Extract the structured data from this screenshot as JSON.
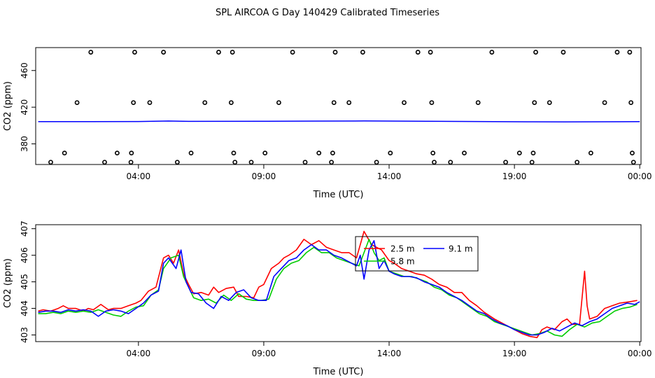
{
  "title": "SPL AIRCOA G  Day 140429  Calibrated Timeseries",
  "chart_data": [
    {
      "type": "scatter",
      "xlabel": "Time (UTC)",
      "ylabel": "CO2 (ppm)",
      "xlim": [
        -0.1,
        24.05
      ],
      "ylim": [
        357.5,
        485
      ],
      "xticks": [
        {
          "value": 4,
          "label": "04:00"
        },
        {
          "value": 9,
          "label": "09:00"
        },
        {
          "value": 14,
          "label": "14:00"
        },
        {
          "value": 19,
          "label": "19:00"
        },
        {
          "value": 24,
          "label": "00:00"
        }
      ],
      "yticks": [
        {
          "value": 380,
          "label": "380"
        },
        {
          "value": 420,
          "label": "420"
        },
        {
          "value": 460,
          "label": "460"
        }
      ],
      "points": [
        [
          0.5,
          360
        ],
        [
          1.05,
          370
        ],
        [
          1.55,
          425
        ],
        [
          2.1,
          480
        ],
        [
          2.65,
          360
        ],
        [
          3.15,
          370
        ],
        [
          3.7,
          360
        ],
        [
          3.72,
          370
        ],
        [
          3.8,
          425
        ],
        [
          3.85,
          480
        ],
        [
          4.45,
          425
        ],
        [
          5.0,
          480
        ],
        [
          5.55,
          360
        ],
        [
          6.1,
          370
        ],
        [
          6.65,
          425
        ],
        [
          7.2,
          480
        ],
        [
          7.7,
          425
        ],
        [
          7.75,
          480
        ],
        [
          7.8,
          370
        ],
        [
          7.85,
          360
        ],
        [
          8.5,
          360
        ],
        [
          9.05,
          370
        ],
        [
          9.6,
          425
        ],
        [
          10.15,
          480
        ],
        [
          10.65,
          360
        ],
        [
          11.2,
          370
        ],
        [
          11.7,
          360
        ],
        [
          11.75,
          370
        ],
        [
          11.8,
          425
        ],
        [
          11.85,
          480
        ],
        [
          12.4,
          425
        ],
        [
          12.95,
          480
        ],
        [
          13.5,
          360
        ],
        [
          14.05,
          370
        ],
        [
          14.6,
          425
        ],
        [
          15.15,
          480
        ],
        [
          15.65,
          480
        ],
        [
          15.7,
          425
        ],
        [
          15.75,
          370
        ],
        [
          15.8,
          360
        ],
        [
          16.45,
          360
        ],
        [
          17.0,
          370
        ],
        [
          17.55,
          425
        ],
        [
          18.1,
          480
        ],
        [
          18.65,
          360
        ],
        [
          19.2,
          370
        ],
        [
          19.7,
          360
        ],
        [
          19.75,
          370
        ],
        [
          19.8,
          425
        ],
        [
          19.85,
          480
        ],
        [
          20.4,
          425
        ],
        [
          20.95,
          480
        ],
        [
          21.5,
          360
        ],
        [
          22.05,
          370
        ],
        [
          22.6,
          425
        ],
        [
          23.1,
          480
        ],
        [
          23.6,
          480
        ],
        [
          23.65,
          425
        ],
        [
          23.7,
          370
        ],
        [
          23.75,
          360
        ]
      ],
      "line": {
        "x": [
          0,
          4,
          5.2,
          6,
          9,
          11,
          13,
          15.5,
          19.5,
          21,
          24
        ],
        "y": [
          404.2,
          404.4,
          404.9,
          404.5,
          404.6,
          404.8,
          405.0,
          404.7,
          404.1,
          404.0,
          404.2
        ]
      }
    },
    {
      "type": "line",
      "xlabel": "Time (UTC)",
      "ylabel": "CO2 (ppm)",
      "xlim": [
        -0.1,
        24.05
      ],
      "ylim": [
        402.75,
        407.15
      ],
      "xticks": [
        {
          "value": 4,
          "label": "04:00"
        },
        {
          "value": 9,
          "label": "09:00"
        },
        {
          "value": 14,
          "label": "14:00"
        },
        {
          "value": 19,
          "label": "19:00"
        },
        {
          "value": 24,
          "label": "00:00"
        }
      ],
      "yticks": [
        {
          "value": 403,
          "label": "403"
        },
        {
          "value": 404,
          "label": "404"
        },
        {
          "value": 405,
          "label": "405"
        },
        {
          "value": 406,
          "label": "406"
        },
        {
          "value": 407,
          "label": "407"
        }
      ],
      "legend": [
        {
          "name": "2.5 m",
          "color": "#ff0000"
        },
        {
          "name": "9.1 m",
          "color": "#0000ff"
        },
        {
          "name": "5.8 m",
          "color": "#00cd00"
        }
      ],
      "series": [
        {
          "name": "2.5 m",
          "color": "#ff0000",
          "x": [
            0,
            0.2,
            0.5,
            0.8,
            1.0,
            1.2,
            1.5,
            1.8,
            2.0,
            2.2,
            2.5,
            2.8,
            3.0,
            3.3,
            3.6,
            3.9,
            4.1,
            4.4,
            4.7,
            5.0,
            5.2,
            5.4,
            5.6,
            5.8,
            6.0,
            6.2,
            6.5,
            6.8,
            7.0,
            7.2,
            7.5,
            7.8,
            8.0,
            8.3,
            8.6,
            8.8,
            9.0,
            9.3,
            9.6,
            9.8,
            10.0,
            10.3,
            10.6,
            10.9,
            11.2,
            11.5,
            11.8,
            12.1,
            12.4,
            12.7,
            13.0,
            13.3,
            13.5,
            13.7,
            14.0,
            14.2,
            14.5,
            14.8,
            15.1,
            15.4,
            15.7,
            16.0,
            16.3,
            16.6,
            16.9,
            17.2,
            17.5,
            17.8,
            18.2,
            18.6,
            19.0,
            19.3,
            19.6,
            19.9,
            20.1,
            20.3,
            20.6,
            20.9,
            21.1,
            21.3,
            21.6,
            21.8,
            21.9,
            22.0,
            22.3,
            22.6,
            22.9,
            23.2,
            23.6,
            23.9
          ],
          "y": [
            403.9,
            403.95,
            403.9,
            404.0,
            404.1,
            404.0,
            404.0,
            403.9,
            404.0,
            403.95,
            404.15,
            403.95,
            404.0,
            404.0,
            404.1,
            404.2,
            404.3,
            404.65,
            404.8,
            405.9,
            406.0,
            405.7,
            406.2,
            405.3,
            404.9,
            404.55,
            404.6,
            404.5,
            404.8,
            404.6,
            404.75,
            404.8,
            404.45,
            404.45,
            404.4,
            404.8,
            404.9,
            405.5,
            405.7,
            405.9,
            406.0,
            406.2,
            406.6,
            406.4,
            406.55,
            406.3,
            406.2,
            406.1,
            406.1,
            405.9,
            406.9,
            406.4,
            406.3,
            406.2,
            405.8,
            405.7,
            405.5,
            405.4,
            405.3,
            405.25,
            405.1,
            404.9,
            404.8,
            404.6,
            404.6,
            404.3,
            404.1,
            403.85,
            403.6,
            403.4,
            403.2,
            403.05,
            402.95,
            402.9,
            403.2,
            403.3,
            403.2,
            403.5,
            403.6,
            403.4,
            403.4,
            405.4,
            404.1,
            403.6,
            403.7,
            404.0,
            404.1,
            404.2,
            404.25,
            404.3
          ]
        },
        {
          "name": "5.8 m",
          "color": "#00cd00",
          "x": [
            0,
            0.3,
            0.6,
            0.9,
            1.2,
            1.5,
            1.8,
            2.1,
            2.4,
            2.7,
            3.0,
            3.3,
            3.6,
            3.9,
            4.2,
            4.5,
            4.8,
            5.0,
            5.3,
            5.6,
            5.8,
            6.0,
            6.2,
            6.5,
            6.8,
            7.1,
            7.4,
            7.7,
            8.0,
            8.3,
            8.6,
            8.9,
            9.2,
            9.5,
            9.8,
            10.1,
            10.4,
            10.7,
            11.0,
            11.3,
            11.6,
            11.9,
            12.2,
            12.5,
            12.8,
            13.0,
            13.2,
            13.4,
            13.6,
            13.8,
            14.0,
            14.3,
            14.6,
            14.9,
            15.2,
            15.5,
            15.8,
            16.1,
            16.4,
            16.7,
            17.0,
            17.3,
            17.6,
            17.9,
            18.2,
            18.5,
            18.8,
            19.1,
            19.4,
            19.7,
            20.0,
            20.3,
            20.6,
            20.9,
            21.2,
            21.5,
            21.8,
            22.1,
            22.4,
            22.7,
            23.0,
            23.3,
            23.6,
            23.9
          ],
          "y": [
            403.8,
            403.8,
            403.85,
            403.8,
            403.9,
            403.85,
            403.9,
            403.85,
            403.95,
            403.85,
            403.75,
            403.7,
            403.9,
            404.05,
            404.1,
            404.5,
            404.7,
            405.5,
            405.9,
            406.0,
            405.2,
            404.8,
            404.4,
            404.3,
            404.35,
            404.2,
            404.5,
            404.3,
            404.55,
            404.35,
            404.3,
            404.3,
            404.35,
            405.1,
            405.5,
            405.7,
            405.8,
            406.1,
            406.3,
            406.1,
            406.1,
            405.9,
            405.8,
            405.7,
            405.6,
            406.1,
            406.6,
            406.1,
            405.8,
            405.9,
            405.4,
            405.3,
            405.2,
            405.2,
            405.1,
            405.0,
            404.8,
            404.7,
            404.5,
            404.4,
            404.2,
            404.0,
            403.8,
            403.7,
            403.5,
            403.4,
            403.3,
            403.2,
            403.1,
            403.0,
            403.05,
            403.15,
            403.0,
            402.95,
            403.2,
            403.4,
            403.3,
            403.45,
            403.5,
            403.7,
            403.9,
            404.0,
            404.05,
            404.15
          ]
        },
        {
          "name": "9.1 m",
          "color": "#0000ff",
          "x": [
            0,
            0.3,
            0.6,
            0.9,
            1.2,
            1.5,
            1.8,
            2.1,
            2.4,
            2.7,
            3.0,
            3.3,
            3.6,
            3.9,
            4.2,
            4.5,
            4.8,
            5.0,
            5.2,
            5.5,
            5.7,
            5.9,
            6.1,
            6.4,
            6.7,
            7.0,
            7.3,
            7.6,
            7.9,
            8.2,
            8.5,
            8.8,
            9.1,
            9.4,
            9.7,
            10.0,
            10.3,
            10.6,
            10.9,
            11.2,
            11.5,
            11.8,
            12.1,
            12.4,
            12.7,
            12.85,
            13.0,
            13.2,
            13.4,
            13.6,
            13.8,
            14.0,
            14.2,
            14.5,
            14.8,
            15.1,
            15.4,
            15.7,
            16.0,
            16.3,
            16.6,
            16.9,
            17.2,
            17.5,
            17.8,
            18.1,
            18.4,
            18.7,
            19.0,
            19.3,
            19.6,
            19.9,
            20.2,
            20.5,
            20.8,
            21.1,
            21.4,
            21.7,
            22.0,
            22.3,
            22.6,
            22.9,
            23.2,
            23.5,
            23.8,
            24.0
          ],
          "y": [
            403.85,
            403.9,
            403.9,
            403.85,
            403.95,
            403.9,
            403.95,
            403.9,
            403.7,
            403.9,
            403.95,
            403.9,
            403.8,
            404.0,
            404.2,
            404.5,
            404.65,
            405.7,
            405.9,
            405.5,
            406.2,
            405.0,
            404.6,
            404.55,
            404.2,
            404.0,
            404.45,
            404.3,
            404.6,
            404.7,
            404.4,
            404.3,
            404.3,
            405.2,
            405.5,
            405.8,
            405.9,
            406.2,
            406.4,
            406.2,
            406.2,
            406.0,
            405.9,
            405.75,
            405.6,
            406.0,
            405.1,
            406.2,
            406.55,
            405.5,
            405.8,
            405.4,
            405.3,
            405.2,
            405.2,
            405.15,
            405.0,
            404.9,
            404.8,
            404.6,
            404.45,
            404.3,
            404.1,
            403.9,
            403.8,
            403.6,
            403.45,
            403.35,
            403.2,
            403.1,
            403.0,
            403.0,
            403.1,
            403.25,
            403.15,
            403.3,
            403.45,
            403.35,
            403.5,
            403.6,
            403.8,
            404.0,
            404.1,
            404.2,
            404.15,
            404.25
          ]
        }
      ]
    }
  ]
}
